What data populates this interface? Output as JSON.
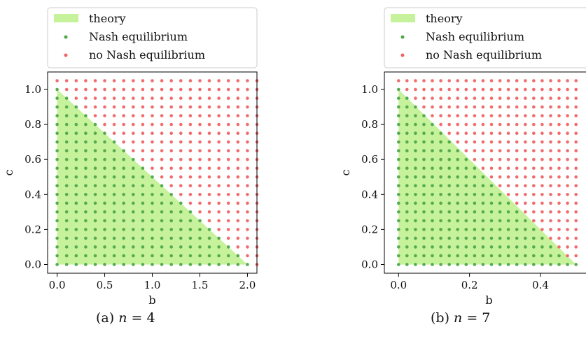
{
  "colors": {
    "theory": "#c5f29a",
    "nash": "#4fa64a",
    "no_nash": "#f06464",
    "axes": "#000000",
    "legend_border": "#cccccc"
  },
  "legend": {
    "placement": "above the plot, left",
    "entries": [
      "theory",
      "Nash equilibrium",
      "no Nash equilibrium"
    ]
  },
  "chart_data": [
    {
      "type": "scatter",
      "caption_prefix": "(a)",
      "caption_var": "n",
      "caption_eq": "= 4",
      "xlabel": "b",
      "ylabel": "c",
      "xlim": [
        -0.1,
        2.1
      ],
      "ylim": [
        -0.05,
        1.1
      ],
      "xticks": [
        0.0,
        0.5,
        1.0,
        1.5,
        2.0
      ],
      "xtick_labels": [
        "0.0",
        "0.5",
        "1.0",
        "1.5",
        "2.0"
      ],
      "yticks": [
        0.0,
        0.2,
        0.4,
        0.6,
        0.8,
        1.0
      ],
      "ytick_labels": [
        "0.0",
        "0.2",
        "0.4",
        "0.6",
        "0.8",
        "1.0"
      ],
      "grid": false,
      "theory_region": {
        "vertices": [
          [
            0,
            0
          ],
          [
            0,
            1
          ],
          [
            2,
            0
          ]
        ]
      },
      "grid_points": {
        "x_start": 0.0,
        "x_end": 2.1,
        "x_count": 22,
        "y_start": 0.0,
        "y_end": 1.05,
        "y_count": 22
      },
      "nash_condition": "c <= 1 - b/2",
      "series": [
        {
          "name": "Nash equilibrium",
          "rule": "points inside the theory region"
        },
        {
          "name": "no Nash equilibrium",
          "rule": "points outside the theory region"
        }
      ]
    },
    {
      "type": "scatter",
      "caption_prefix": "(b)",
      "caption_var": "n",
      "caption_eq": "= 7",
      "xlabel": "b",
      "ylabel": "c",
      "xlim": [
        -0.04,
        0.55
      ],
      "ylim": [
        -0.05,
        1.1
      ],
      "xticks": [
        0.0,
        0.2,
        0.4
      ],
      "xtick_labels": [
        "0.0",
        "0.2",
        "0.4"
      ],
      "yticks": [
        0.0,
        0.2,
        0.4,
        0.6,
        0.8,
        1.0
      ],
      "ytick_labels": [
        "0.0",
        "0.2",
        "0.4",
        "0.6",
        "0.8",
        "1.0"
      ],
      "grid": false,
      "theory_region": {
        "vertices": [
          [
            0,
            0
          ],
          [
            0,
            1
          ],
          [
            0.5,
            0
          ]
        ]
      },
      "grid_points": {
        "x_start": 0.0,
        "x_end": 0.5,
        "x_count": 22,
        "y_start": 0.0,
        "y_end": 1.05,
        "y_count": 22
      },
      "nash_condition": "c <= 1 - 2b",
      "series": [
        {
          "name": "Nash equilibrium",
          "rule": "points inside the theory region"
        },
        {
          "name": "no Nash equilibrium",
          "rule": "points outside the theory region"
        }
      ]
    }
  ]
}
